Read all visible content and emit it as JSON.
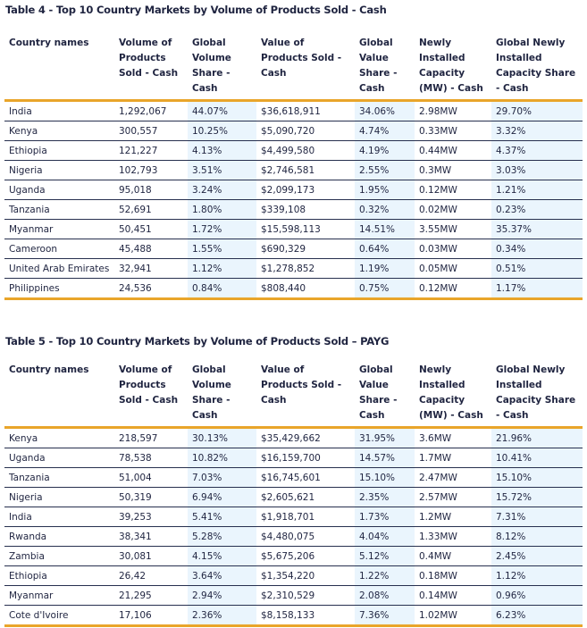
{
  "tables": [
    {
      "title": "Table 4 - Top 10 Country Markets by Volume of Products Sold - Cash",
      "headers": [
        "Country names",
        "Volume of Products Sold - Cash",
        "Global Volume Share - Cash",
        "Value of Products Sold - Cash",
        "Global Value Share - Cash",
        "Newly Installed Capacity (MW) - Cash",
        "Global Newly Installed Capacity Share - Cash"
      ],
      "rows": [
        [
          "India",
          "1,292,067",
          "44.07%",
          "$36,618,911",
          "34.06%",
          "2.98MW",
          "29.70%"
        ],
        [
          "Kenya",
          "300,557",
          "10.25%",
          "$5,090,720",
          "4.74%",
          "0.33MW",
          "3.32%"
        ],
        [
          "Ethiopia",
          "121,227",
          "4.13%",
          "$4,499,580",
          "4.19%",
          "0.44MW",
          "4.37%"
        ],
        [
          "Nigeria",
          "102,793",
          "3.51%",
          "$2,746,581",
          "2.55%",
          "0.3MW",
          "3.03%"
        ],
        [
          "Uganda",
          "95,018",
          "3.24%",
          "$2,099,173",
          "1.95%",
          "0.12MW",
          "1.21%"
        ],
        [
          "Tanzania",
          "52,691",
          "1.80%",
          "$339,108",
          "0.32%",
          "0.02MW",
          "0.23%"
        ],
        [
          "Myanmar",
          "50,451",
          "1.72%",
          "$15,598,113",
          "14.51%",
          "3.55MW",
          "35.37%"
        ],
        [
          "Cameroon",
          "45,488",
          "1.55%",
          "$690,329",
          "0.64%",
          "0.03MW",
          "0.34%"
        ],
        [
          "United Arab Emirates",
          "32,941",
          "1.12%",
          "$1,278,852",
          "1.19%",
          "0.05MW",
          "0.51%"
        ],
        [
          "Philippines",
          "24,536",
          "0.84%",
          "$808,440",
          "0.75%",
          "0.12MW",
          "1.17%"
        ]
      ]
    },
    {
      "title": "Table 5 - Top 10 Country Markets by Volume of Products Sold – PAYG",
      "headers": [
        "Country names",
        "Volume of Products Sold - Cash",
        "Global Volume Share - Cash",
        "Value of Products Sold - Cash",
        "Global Value Share - Cash",
        "Newly Installed Capacity (MW) - Cash",
        "Global Newly Installed Capacity Share - Cash"
      ],
      "rows": [
        [
          "Kenya",
          "218,597",
          "30.13%",
          "$35,429,662",
          "31.95%",
          "3.6MW",
          "21.96%"
        ],
        [
          "Uganda",
          "78,538",
          "10.82%",
          "$16,159,700",
          "14.57%",
          "1.7MW",
          "10.41%"
        ],
        [
          "Tanzania",
          "51,004",
          "7.03%",
          "$16,745,601",
          "15.10%",
          "2.47MW",
          "15.10%"
        ],
        [
          "Nigeria",
          "50,319",
          "6.94%",
          "$2,605,621",
          "2.35%",
          "2.57MW",
          "15.72%"
        ],
        [
          "India",
          "39,253",
          "5.41%",
          "$1,918,701",
          "1.73%",
          "1.2MW",
          "7.31%"
        ],
        [
          "Rwanda",
          "38,341",
          "5.28%",
          "$4,480,075",
          "4.04%",
          "1.33MW",
          "8.12%"
        ],
        [
          "Zambia",
          "30,081",
          "4.15%",
          "$5,675,206",
          "5.12%",
          "0.4MW",
          "2.45%"
        ],
        [
          "Ethiopia",
          "26,42",
          "3.64%",
          "$1,354,220",
          "1.22%",
          "0.18MW",
          "1.12%"
        ],
        [
          "Myanmar",
          "21,295",
          "2.94%",
          "$2,310,529",
          "2.08%",
          "0.14MW",
          "0.96%"
        ],
        [
          "Cote d'Ivoire",
          "17,106",
          "2.36%",
          "$8,158,133",
          "7.36%",
          "1.02MW",
          "6.23%"
        ]
      ]
    }
  ]
}
